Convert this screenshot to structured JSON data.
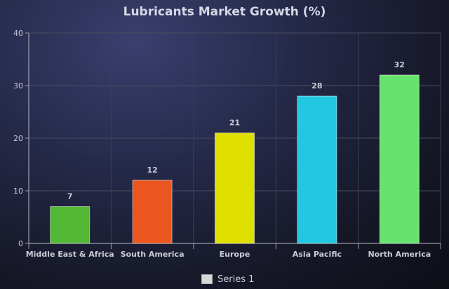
{
  "chart_data": {
    "type": "bar",
    "title": "Lubricants Market Growth (%)",
    "xlabel": "",
    "ylabel": "",
    "categories": [
      "Middle East & Africa",
      "South America",
      "Europe",
      "Asia Pacific",
      "North America"
    ],
    "series": [
      {
        "name": "Series 1",
        "values": [
          7,
          12,
          21,
          28,
          32
        ]
      }
    ],
    "colors": [
      "#52b734",
      "#ea561e",
      "#dfe000",
      "#22c8e2",
      "#66e36e"
    ],
    "ylim": [
      0,
      40
    ],
    "yticks": [
      0,
      10,
      20,
      30,
      40
    ],
    "data_labels": true,
    "grid": true,
    "legend": "bottom"
  },
  "legend": {
    "swatch_color": "#d8d8d8"
  }
}
